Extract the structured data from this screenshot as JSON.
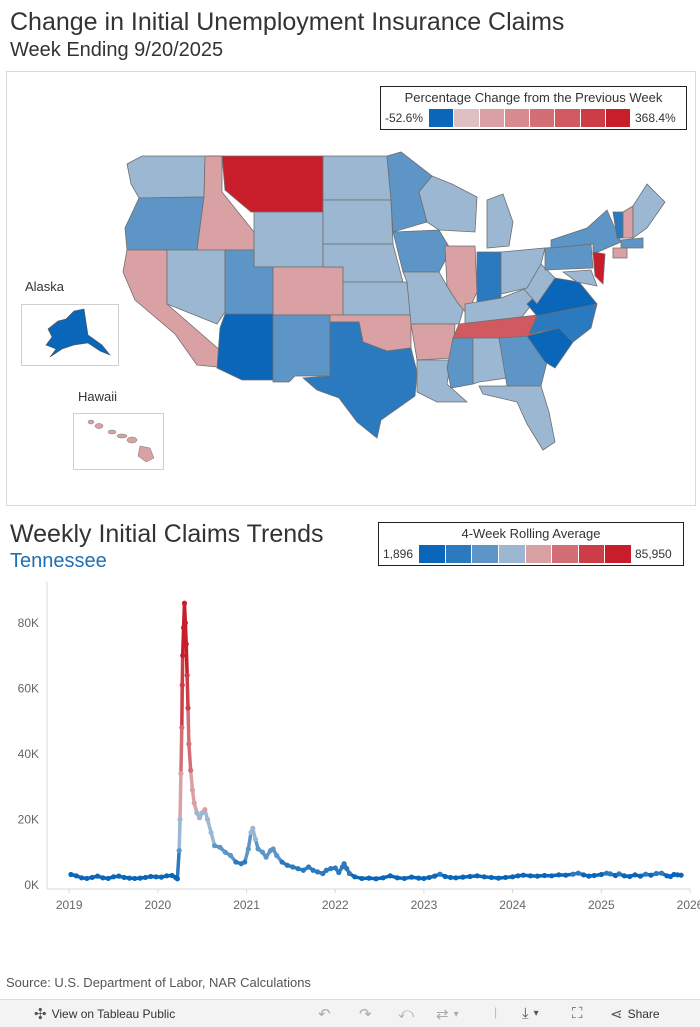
{
  "header": {
    "title": "Change in Initial Unemployment Insurance Claims",
    "subtitle": "Week Ending 9/20/2025"
  },
  "map": {
    "legend": {
      "title": "Percentage Change from the Previous Week",
      "min_label": "-52.6%",
      "max_label": "368.4%",
      "colors": [
        "#0a66b8",
        "#dfc0c2",
        "#d9a1a4",
        "#d68b8f",
        "#d36f74",
        "#d15960",
        "#cd3d47",
        "#c81d2a"
      ]
    },
    "insets": {
      "alaska_label": "Alaska",
      "hawaii_label": "Hawaii"
    }
  },
  "trend": {
    "title": "Weekly Initial Claims Trends",
    "state": "Tennessee",
    "legend": {
      "title": "4-Week Rolling Average",
      "min_label": "1,896",
      "max_label": "85,950",
      "colors": [
        "#0a66b8",
        "#2b79bf",
        "#5d95c6",
        "#9bb7d1",
        "#d9a1a4",
        "#d36f74",
        "#cd3d47",
        "#c81d2a"
      ]
    }
  },
  "chart_data": {
    "type": "line",
    "title": "Weekly Initial Claims Trends",
    "subtitle": "Tennessee",
    "xlabel": "",
    "ylabel": "",
    "xlim": [
      2018.75,
      2026.0
    ],
    "ylim": [
      0,
      90000
    ],
    "x_ticks": [
      "2019",
      "2020",
      "2021",
      "2022",
      "2023",
      "2024",
      "2025",
      "2026"
    ],
    "y_ticks": [
      "0K",
      "20K",
      "40K",
      "60K",
      "80K"
    ],
    "y_tick_values": [
      0,
      20000,
      40000,
      60000,
      80000
    ],
    "color_range": [
      1896,
      85950
    ],
    "series": [
      {
        "name": "Tennessee 4-Week Rolling Average",
        "points": [
          [
            2019.02,
            3200
          ],
          [
            2019.08,
            2800
          ],
          [
            2019.14,
            2200
          ],
          [
            2019.2,
            2000
          ],
          [
            2019.26,
            2300
          ],
          [
            2019.32,
            2700
          ],
          [
            2019.38,
            2200
          ],
          [
            2019.44,
            2000
          ],
          [
            2019.5,
            2500
          ],
          [
            2019.56,
            2700
          ],
          [
            2019.62,
            2300
          ],
          [
            2019.68,
            2100
          ],
          [
            2019.74,
            2000
          ],
          [
            2019.8,
            2100
          ],
          [
            2019.86,
            2300
          ],
          [
            2019.92,
            2600
          ],
          [
            2019.98,
            2500
          ],
          [
            2020.04,
            2400
          ],
          [
            2020.1,
            2800
          ],
          [
            2020.16,
            2900
          ],
          [
            2020.2,
            2300
          ],
          [
            2020.22,
            1896
          ],
          [
            2020.24,
            10500
          ],
          [
            2020.25,
            20000
          ],
          [
            2020.26,
            34000
          ],
          [
            2020.27,
            48000
          ],
          [
            2020.275,
            61000
          ],
          [
            2020.28,
            70000
          ],
          [
            2020.29,
            78500
          ],
          [
            2020.3,
            85950
          ],
          [
            2020.31,
            80000
          ],
          [
            2020.32,
            73500
          ],
          [
            2020.33,
            64000
          ],
          [
            2020.34,
            54000
          ],
          [
            2020.35,
            43000
          ],
          [
            2020.37,
            35000
          ],
          [
            2020.39,
            29000
          ],
          [
            2020.41,
            25000
          ],
          [
            2020.44,
            22000
          ],
          [
            2020.47,
            20500
          ],
          [
            2020.5,
            22000
          ],
          [
            2020.53,
            23000
          ],
          [
            2020.56,
            20000
          ],
          [
            2020.6,
            16000
          ],
          [
            2020.64,
            12000
          ],
          [
            2020.7,
            11500
          ],
          [
            2020.76,
            10000
          ],
          [
            2020.82,
            9000
          ],
          [
            2020.88,
            7000
          ],
          [
            2020.94,
            6500
          ],
          [
            2020.98,
            7000
          ],
          [
            2021.02,
            11000
          ],
          [
            2021.05,
            16000
          ],
          [
            2021.07,
            17300
          ],
          [
            2021.1,
            14000
          ],
          [
            2021.13,
            11000
          ],
          [
            2021.18,
            10000
          ],
          [
            2021.22,
            8500
          ],
          [
            2021.27,
            10500
          ],
          [
            2021.3,
            11000
          ],
          [
            2021.34,
            9000
          ],
          [
            2021.4,
            7000
          ],
          [
            2021.46,
            6000
          ],
          [
            2021.52,
            5500
          ],
          [
            2021.58,
            5000
          ],
          [
            2021.64,
            4500
          ],
          [
            2021.7,
            5500
          ],
          [
            2021.75,
            4500
          ],
          [
            2021.8,
            4000
          ],
          [
            2021.86,
            3500
          ],
          [
            2021.9,
            4500
          ],
          [
            2021.95,
            5000
          ],
          [
            2022.0,
            5200
          ],
          [
            2022.04,
            3800
          ],
          [
            2022.08,
            5500
          ],
          [
            2022.1,
            6500
          ],
          [
            2022.13,
            5000
          ],
          [
            2022.16,
            3500
          ],
          [
            2022.22,
            2500
          ],
          [
            2022.3,
            2000
          ],
          [
            2022.38,
            2100
          ],
          [
            2022.46,
            1900
          ],
          [
            2022.54,
            2200
          ],
          [
            2022.62,
            2800
          ],
          [
            2022.7,
            2200
          ],
          [
            2022.78,
            2000
          ],
          [
            2022.86,
            2400
          ],
          [
            2022.94,
            2100
          ],
          [
            2023.0,
            2000
          ],
          [
            2023.06,
            2300
          ],
          [
            2023.12,
            2700
          ],
          [
            2023.18,
            3300
          ],
          [
            2023.24,
            2600
          ],
          [
            2023.3,
            2300
          ],
          [
            2023.36,
            2200
          ],
          [
            2023.44,
            2400
          ],
          [
            2023.52,
            2600
          ],
          [
            2023.6,
            2800
          ],
          [
            2023.68,
            2500
          ],
          [
            2023.76,
            2300
          ],
          [
            2023.84,
            2100
          ],
          [
            2023.92,
            2300
          ],
          [
            2024.0,
            2500
          ],
          [
            2024.06,
            2800
          ],
          [
            2024.12,
            3000
          ],
          [
            2024.2,
            2800
          ],
          [
            2024.28,
            2700
          ],
          [
            2024.36,
            2900
          ],
          [
            2024.44,
            2800
          ],
          [
            2024.52,
            3100
          ],
          [
            2024.6,
            3000
          ],
          [
            2024.68,
            3300
          ],
          [
            2024.74,
            3600
          ],
          [
            2024.8,
            3100
          ],
          [
            2024.86,
            2700
          ],
          [
            2024.92,
            2900
          ],
          [
            2025.0,
            3200
          ],
          [
            2025.06,
            3600
          ],
          [
            2025.1,
            3400
          ],
          [
            2025.16,
            2900
          ],
          [
            2025.2,
            3400
          ],
          [
            2025.26,
            2800
          ],
          [
            2025.32,
            2600
          ],
          [
            2025.38,
            3100
          ],
          [
            2025.44,
            2700
          ],
          [
            2025.5,
            3300
          ],
          [
            2025.56,
            3000
          ],
          [
            2025.62,
            3500
          ],
          [
            2025.68,
            3600
          ],
          [
            2025.74,
            2800
          ],
          [
            2025.78,
            2600
          ],
          [
            2025.82,
            3200
          ],
          [
            2025.86,
            3100
          ],
          [
            2025.9,
            3000
          ]
        ]
      }
    ]
  },
  "footer": {
    "source": "Source: U.S. Department of Labor, NAR Calculations"
  },
  "toolbar": {
    "view_label": "View on Tableau Public",
    "share_label": "Share"
  }
}
